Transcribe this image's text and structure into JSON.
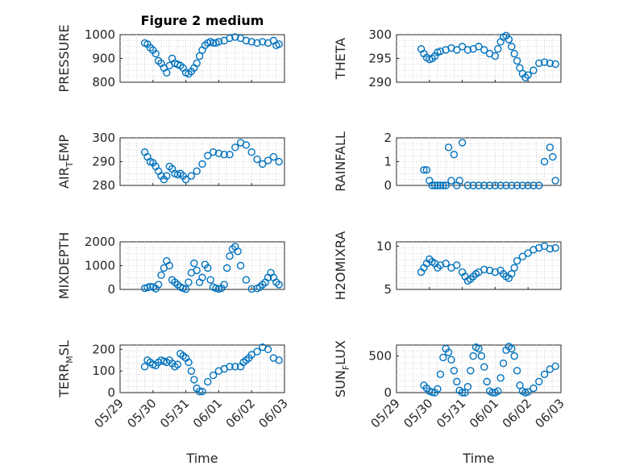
{
  "figure": {
    "title": "Figure 2 medium",
    "marker_color": "#0072BD",
    "x_axis": {
      "xlabel": "Time",
      "xlim": [
        "05/29",
        "06/03"
      ],
      "tick_labels": [
        "05/29",
        "05/30",
        "05/31",
        "06/01",
        "06/02",
        "06/03"
      ]
    }
  },
  "chart_data": [
    {
      "type": "scatter",
      "title": "Figure 2 medium",
      "ylabel": "PRESSURE",
      "ylim": [
        800,
        1000
      ],
      "yticks": [
        800,
        900,
        1000
      ],
      "grid": true,
      "x": [
        "05/29 18:00",
        "05/29 20:00",
        "05/29 22:00",
        "05/30 00:00",
        "05/30 02:00",
        "05/30 04:00",
        "05/30 06:00",
        "05/30 08:00",
        "05/30 10:00",
        "05/30 12:00",
        "05/30 14:00",
        "05/30 16:00",
        "05/30 18:00",
        "05/30 20:00",
        "05/30 22:00",
        "05/31 00:00",
        "05/31 02:00",
        "05/31 04:00",
        "05/31 06:00",
        "05/31 08:00",
        "05/31 10:00",
        "05/31 12:00",
        "05/31 14:00",
        "05/31 16:00",
        "05/31 18:00",
        "05/31 20:00",
        "05/31 22:00",
        "06/01 00:00",
        "06/01 04:00",
        "06/01 08:00",
        "06/01 12:00",
        "06/01 16:00",
        "06/01 20:00",
        "06/02 00:00",
        "06/02 04:00",
        "06/02 08:00",
        "06/02 12:00",
        "06/02 16:00",
        "06/02 18:00",
        "06/02 20:00"
      ],
      "values": [
        965,
        960,
        945,
        935,
        920,
        890,
        880,
        860,
        840,
        870,
        900,
        880,
        875,
        870,
        860,
        840,
        835,
        845,
        860,
        880,
        910,
        935,
        955,
        965,
        970,
        965,
        965,
        970,
        975,
        985,
        990,
        985,
        975,
        970,
        965,
        970,
        965,
        975,
        955,
        960
      ]
    },
    {
      "type": "scatter",
      "ylabel": "THETA",
      "ylim": [
        290,
        300
      ],
      "yticks": [
        290,
        295,
        300
      ],
      "grid": true,
      "x": [
        "05/29 18:00",
        "05/29 20:00",
        "05/29 22:00",
        "05/30 00:00",
        "05/30 02:00",
        "05/30 04:00",
        "05/30 06:00",
        "05/30 08:00",
        "05/30 12:00",
        "05/30 16:00",
        "05/30 20:00",
        "05/31 00:00",
        "05/31 04:00",
        "05/31 08:00",
        "05/31 12:00",
        "05/31 16:00",
        "05/31 20:00",
        "06/01 00:00",
        "06/01 02:00",
        "06/01 04:00",
        "06/01 06:00",
        "06/01 08:00",
        "06/01 10:00",
        "06/01 12:00",
        "06/01 14:00",
        "06/01 16:00",
        "06/01 18:00",
        "06/01 20:00",
        "06/01 22:00",
        "06/02 00:00",
        "06/02 04:00",
        "06/02 08:00",
        "06/02 12:00",
        "06/02 16:00",
        "06/02 20:00"
      ],
      "values": [
        297.0,
        296.0,
        295.2,
        294.8,
        295.0,
        295.5,
        296.3,
        296.5,
        296.8,
        297.2,
        296.8,
        297.5,
        296.8,
        297.0,
        297.5,
        296.8,
        296.0,
        295.5,
        297.0,
        298.5,
        299.5,
        299.8,
        299.0,
        297.5,
        296.0,
        294.5,
        293.0,
        291.8,
        291.0,
        291.5,
        292.5,
        294.0,
        294.2,
        294.0,
        293.8
      ]
    },
    {
      "type": "scatter",
      "ylabel": "AIR_TEMP",
      "ylim": [
        280,
        300
      ],
      "yticks": [
        280,
        290,
        300
      ],
      "grid": true,
      "x": [
        "05/29 18:00",
        "05/29 20:00",
        "05/29 22:00",
        "05/30 00:00",
        "05/30 02:00",
        "05/30 04:00",
        "05/30 06:00",
        "05/30 08:00",
        "05/30 10:00",
        "05/30 12:00",
        "05/30 14:00",
        "05/30 16:00",
        "05/30 18:00",
        "05/30 20:00",
        "05/30 22:00",
        "05/31 00:00",
        "05/31 04:00",
        "05/31 08:00",
        "05/31 12:00",
        "05/31 16:00",
        "05/31 20:00",
        "06/01 00:00",
        "06/01 04:00",
        "06/01 08:00",
        "06/01 12:00",
        "06/01 16:00",
        "06/01 20:00",
        "06/02 00:00",
        "06/02 04:00",
        "06/02 08:00",
        "06/02 12:00",
        "06/02 16:00",
        "06/02 20:00"
      ],
      "values": [
        294,
        292,
        290,
        289.5,
        288,
        286,
        284,
        282.5,
        284,
        288,
        287,
        285,
        284.5,
        285,
        284,
        282.5,
        284,
        286,
        289,
        292.5,
        294,
        293.5,
        293,
        293,
        296,
        298,
        297,
        294,
        291,
        289,
        290.5,
        292,
        290
      ]
    },
    {
      "type": "scatter",
      "ylabel": "RAINFALL",
      "ylim": [
        0,
        2
      ],
      "yticks": [
        0,
        1,
        2
      ],
      "grid": true,
      "x": [
        "05/29 20:00",
        "05/29 22:00",
        "05/30 00:00",
        "05/30 02:00",
        "05/30 04:00",
        "05/30 06:00",
        "05/30 08:00",
        "05/30 10:00",
        "05/30 12:00",
        "05/30 14:00",
        "05/30 16:00",
        "05/30 18:00",
        "05/30 20:00",
        "05/30 22:00",
        "05/31 00:00",
        "05/31 04:00",
        "05/31 08:00",
        "05/31 12:00",
        "05/31 16:00",
        "05/31 20:00",
        "06/01 00:00",
        "06/01 04:00",
        "06/01 08:00",
        "06/01 12:00",
        "06/01 16:00",
        "06/01 20:00",
        "06/02 00:00",
        "06/02 04:00",
        "06/02 08:00",
        "06/02 12:00",
        "06/02 16:00",
        "06/02 18:00",
        "06/02 20:00"
      ],
      "values": [
        0.65,
        0.65,
        0.2,
        0,
        0,
        0,
        0,
        0,
        0,
        1.6,
        0.2,
        1.3,
        0,
        0.2,
        1.8,
        0,
        0,
        0,
        0,
        0,
        0,
        0,
        0,
        0,
        0,
        0,
        0,
        0,
        0,
        1.0,
        1.6,
        1.2,
        0.2
      ]
    },
    {
      "type": "scatter",
      "ylabel": "MIXDEPTH",
      "ylim": [
        0,
        2000
      ],
      "yticks": [
        0,
        1000,
        2000
      ],
      "grid": true,
      "x": [
        "05/29 18:00",
        "05/29 20:00",
        "05/29 22:00",
        "05/30 00:00",
        "05/30 02:00",
        "05/30 04:00",
        "05/30 06:00",
        "05/30 08:00",
        "05/30 10:00",
        "05/30 12:00",
        "05/30 14:00",
        "05/30 16:00",
        "05/30 18:00",
        "05/30 20:00",
        "05/30 22:00",
        "05/31 00:00",
        "05/31 02:00",
        "05/31 04:00",
        "05/31 06:00",
        "05/31 08:00",
        "05/31 10:00",
        "05/31 12:00",
        "05/31 14:00",
        "05/31 16:00",
        "05/31 18:00",
        "05/31 20:00",
        "05/31 22:00",
        "06/01 00:00",
        "06/01 02:00",
        "06/01 04:00",
        "06/01 06:00",
        "06/01 08:00",
        "06/01 10:00",
        "06/01 12:00",
        "06/01 14:00",
        "06/01 16:00",
        "06/01 20:00",
        "06/02 00:00",
        "06/02 04:00",
        "06/02 06:00",
        "06/02 08:00",
        "06/02 10:00",
        "06/02 12:00",
        "06/02 14:00",
        "06/02 16:00",
        "06/02 18:00",
        "06/02 20:00"
      ],
      "values": [
        50,
        80,
        120,
        100,
        30,
        200,
        600,
        900,
        1200,
        1000,
        400,
        300,
        200,
        100,
        50,
        10,
        300,
        700,
        1100,
        800,
        300,
        500,
        1050,
        900,
        400,
        100,
        50,
        20,
        50,
        200,
        900,
        1400,
        1700,
        1800,
        1600,
        1000,
        400,
        20,
        40,
        100,
        200,
        300,
        500,
        700,
        500,
        300,
        200
      ]
    },
    {
      "type": "scatter",
      "ylabel": "H2OMIXRA",
      "ylim": [
        5,
        10.5
      ],
      "yticks": [
        5,
        10
      ],
      "grid": true,
      "x": [
        "05/29 18:00",
        "05/29 20:00",
        "05/29 22:00",
        "05/30 00:00",
        "05/30 02:00",
        "05/30 04:00",
        "05/30 06:00",
        "05/30 08:00",
        "05/30 12:00",
        "05/30 16:00",
        "05/30 20:00",
        "05/31 00:00",
        "05/31 02:00",
        "05/31 04:00",
        "05/31 06:00",
        "05/31 08:00",
        "05/31 10:00",
        "05/31 12:00",
        "05/31 16:00",
        "05/31 20:00",
        "06/01 00:00",
        "06/01 04:00",
        "06/01 06:00",
        "06/01 08:00",
        "06/01 10:00",
        "06/01 12:00",
        "06/01 14:00",
        "06/01 16:00",
        "06/01 20:00",
        "06/02 00:00",
        "06/02 04:00",
        "06/02 08:00",
        "06/02 12:00",
        "06/02 16:00",
        "06/02 20:00"
      ],
      "values": [
        7.0,
        7.5,
        8.0,
        8.5,
        8.2,
        8.0,
        7.5,
        7.8,
        8.0,
        7.5,
        7.8,
        7.0,
        6.5,
        6.0,
        6.2,
        6.5,
        6.8,
        7.0,
        7.3,
        7.2,
        7.0,
        7.2,
        6.8,
        6.5,
        6.3,
        6.8,
        7.5,
        8.3,
        8.8,
        9.2,
        9.6,
        9.8,
        10.0,
        9.7,
        9.8
      ]
    },
    {
      "type": "scatter",
      "ylabel": "TERR_MSL",
      "ylim": [
        0,
        220
      ],
      "yticks": [
        0,
        100,
        200
      ],
      "grid": true,
      "x": [
        "05/29 18:00",
        "05/29 20:00",
        "05/29 22:00",
        "05/30 00:00",
        "05/30 02:00",
        "05/30 04:00",
        "05/30 06:00",
        "05/30 08:00",
        "05/30 10:00",
        "05/30 12:00",
        "05/30 14:00",
        "05/30 16:00",
        "05/30 18:00",
        "05/30 20:00",
        "05/30 22:00",
        "05/31 00:00",
        "05/31 02:00",
        "05/31 04:00",
        "05/31 06:00",
        "05/31 08:00",
        "05/31 10:00",
        "05/31 12:00",
        "05/31 16:00",
        "05/31 20:00",
        "06/01 00:00",
        "06/01 04:00",
        "06/01 08:00",
        "06/01 12:00",
        "06/01 16:00",
        "06/01 18:00",
        "06/01 20:00",
        "06/01 22:00",
        "06/02 00:00",
        "06/02 04:00",
        "06/02 08:00",
        "06/02 12:00",
        "06/02 16:00",
        "06/02 20:00"
      ],
      "values": [
        120,
        150,
        140,
        130,
        125,
        140,
        150,
        145,
        140,
        150,
        135,
        120,
        130,
        180,
        170,
        160,
        140,
        100,
        60,
        20,
        5,
        5,
        50,
        80,
        100,
        110,
        120,
        120,
        120,
        140,
        150,
        160,
        175,
        190,
        210,
        200,
        160,
        150
      ]
    },
    {
      "type": "scatter",
      "ylabel": "SUN_FLUX",
      "ylim": [
        0,
        650
      ],
      "yticks": [
        0,
        500
      ],
      "grid": true,
      "x": [
        "05/29 20:00",
        "05/29 22:00",
        "05/30 00:00",
        "05/30 02:00",
        "05/30 04:00",
        "05/30 06:00",
        "05/30 08:00",
        "05/30 10:00",
        "05/30 12:00",
        "05/30 14:00",
        "05/30 16:00",
        "05/30 18:00",
        "05/30 20:00",
        "05/30 22:00",
        "05/31 00:00",
        "05/31 02:00",
        "05/31 04:00",
        "05/31 06:00",
        "05/31 08:00",
        "05/31 10:00",
        "05/31 12:00",
        "05/31 14:00",
        "05/31 16:00",
        "05/31 18:00",
        "05/31 20:00",
        "05/31 22:00",
        "06/01 00:00",
        "06/01 02:00",
        "06/01 04:00",
        "06/01 06:00",
        "06/01 08:00",
        "06/01 10:00",
        "06/01 12:00",
        "06/01 14:00",
        "06/01 16:00",
        "06/01 18:00",
        "06/01 20:00",
        "06/01 22:00",
        "06/02 00:00",
        "06/02 04:00",
        "06/02 08:00",
        "06/02 12:00",
        "06/02 16:00",
        "06/02 20:00"
      ],
      "values": [
        100,
        60,
        20,
        5,
        0,
        50,
        250,
        480,
        600,
        550,
        450,
        300,
        150,
        30,
        0,
        0,
        80,
        300,
        500,
        620,
        600,
        500,
        350,
        150,
        20,
        0,
        0,
        20,
        200,
        400,
        580,
        630,
        600,
        500,
        300,
        100,
        20,
        0,
        10,
        60,
        150,
        250,
        320,
        360
      ]
    }
  ]
}
